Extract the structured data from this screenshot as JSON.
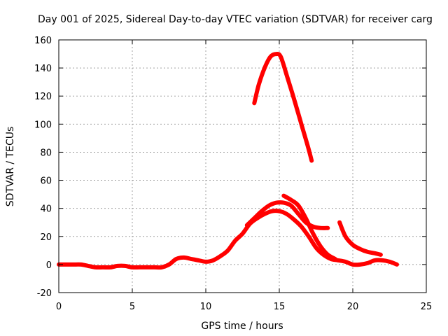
{
  "chart_data": {
    "type": "line",
    "title": "Day 001 of 2025, Sidereal Day-to-day VTEC variation (SDTVAR) for receiver carg",
    "xlabel": "GPS time / hours",
    "ylabel": "SDTVAR / TECUs",
    "xlim": [
      0,
      25
    ],
    "ylim": [
      -20,
      160
    ],
    "xticks": [
      0,
      5,
      10,
      15,
      20,
      25
    ],
    "yticks": [
      -20,
      0,
      20,
      40,
      60,
      80,
      100,
      120,
      140,
      160
    ],
    "grid": true,
    "color": "#ff0000",
    "series": [
      {
        "name": "main-trace",
        "x": [
          0,
          0.5,
          1,
          1.5,
          2,
          2.5,
          3,
          3.5,
          4,
          4.5,
          5,
          5.5,
          6,
          6.5,
          7,
          7.5,
          8,
          8.5,
          9,
          9.5,
          10,
          10.5,
          11,
          11.5,
          12,
          12.5,
          13,
          13.5,
          14,
          14.5,
          15,
          15.5,
          16,
          16.5,
          17,
          17.5,
          18,
          18.5,
          19,
          19.5,
          20,
          20.5,
          21,
          21.5,
          22,
          22.5,
          23
        ],
        "y": [
          0,
          0,
          0,
          0,
          -1,
          -2,
          -2,
          -2,
          -1,
          -1,
          -2,
          -2,
          -2,
          -2,
          -2,
          0,
          4,
          5,
          4,
          3,
          2,
          3,
          6,
          10,
          17,
          22,
          29,
          33,
          36,
          38,
          38,
          36,
          32,
          27,
          20,
          12,
          7,
          4,
          3,
          2,
          0,
          0,
          1,
          3,
          3,
          2,
          0
        ]
      },
      {
        "name": "upper-arc",
        "x": [
          13.3,
          13.6,
          14,
          14.4,
          14.8,
          15.1,
          15.5,
          16,
          16.5,
          17,
          17.2
        ],
        "y": [
          115,
          128,
          140,
          148,
          150,
          148,
          135,
          118,
          100,
          82,
          74
        ]
      },
      {
        "name": "secondary-peak",
        "x": [
          12.8,
          13.3,
          13.8,
          14.3,
          14.8,
          15.3,
          15.8,
          16.3,
          16.8,
          17.3,
          17.8,
          18.3
        ],
        "y": [
          28,
          33,
          38,
          42,
          44,
          44,
          42,
          36,
          30,
          27,
          26,
          26
        ]
      },
      {
        "name": "late-branch",
        "x": [
          15.3,
          15.8,
          16.3,
          16.8,
          17.3,
          17.8,
          18.3,
          18.8
        ],
        "y": [
          49,
          46,
          42,
          33,
          22,
          13,
          7,
          4
        ]
      },
      {
        "name": "late-tail",
        "x": [
          19.1,
          19.5,
          20,
          20.5,
          21,
          21.5,
          21.9
        ],
        "y": [
          30,
          20,
          14,
          11,
          9,
          8,
          7
        ]
      }
    ]
  }
}
